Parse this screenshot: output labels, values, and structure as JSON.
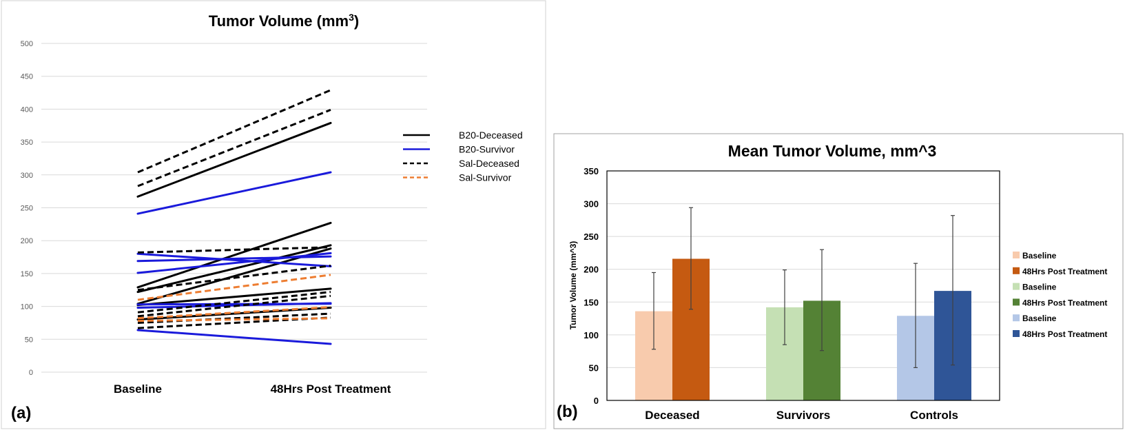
{
  "chart_data": [
    {
      "type": "line",
      "panel_label": "(a)",
      "title": "Tumor Volume (mm",
      "title_superscript": "3",
      "title_close": ")",
      "categories": [
        "Baseline",
        "48Hrs Post Treatment"
      ],
      "xlabel": "",
      "ylabel": "",
      "ylim": [
        0,
        500
      ],
      "yticks": [
        0,
        50,
        100,
        150,
        200,
        250,
        300,
        350,
        400,
        450,
        500
      ],
      "grid": true,
      "legend_position": "right",
      "legend": [
        {
          "name": "B20-Deceased",
          "color": "#000000",
          "dashed": false
        },
        {
          "name": "B20-Survivor",
          "color": "#1a1adb",
          "dashed": false
        },
        {
          "name": "Sal-Deceased",
          "color": "#000000",
          "dashed": true
        },
        {
          "name": "Sal-Survivor",
          "color": "#ed7d31",
          "dashed": true
        }
      ],
      "series": [
        {
          "group": "B20-Deceased",
          "values": [
            267,
            379
          ]
        },
        {
          "group": "B20-Deceased",
          "values": [
            129,
            227
          ]
        },
        {
          "group": "B20-Deceased",
          "values": [
            122,
            193
          ]
        },
        {
          "group": "B20-Deceased",
          "values": [
            104,
            188
          ]
        },
        {
          "group": "B20-Deceased",
          "values": [
            102,
            127
          ]
        },
        {
          "group": "B20-Deceased",
          "values": [
            80,
            98
          ]
        },
        {
          "group": "B20-Survivor",
          "values": [
            241,
            304
          ]
        },
        {
          "group": "B20-Survivor",
          "values": [
            180,
            161
          ]
        },
        {
          "group": "B20-Survivor",
          "values": [
            169,
            176
          ]
        },
        {
          "group": "B20-Survivor",
          "values": [
            151,
            181
          ]
        },
        {
          "group": "B20-Survivor",
          "values": [
            103,
            104
          ]
        },
        {
          "group": "B20-Survivor",
          "values": [
            98,
            105
          ]
        },
        {
          "group": "B20-Survivor",
          "values": [
            64,
            43
          ]
        },
        {
          "group": "Sal-Deceased",
          "values": [
            304,
            429
          ]
        },
        {
          "group": "Sal-Deceased",
          "values": [
            283,
            399
          ]
        },
        {
          "group": "Sal-Deceased",
          "values": [
            182,
            190
          ]
        },
        {
          "group": "Sal-Deceased",
          "values": [
            125,
            162
          ]
        },
        {
          "group": "Sal-Deceased",
          "values": [
            91,
            122
          ]
        },
        {
          "group": "Sal-Deceased",
          "values": [
            85,
            116
          ]
        },
        {
          "group": "Sal-Deceased",
          "values": [
            75,
            89
          ]
        },
        {
          "group": "Sal-Deceased",
          "values": [
            67,
            83
          ]
        },
        {
          "group": "Sal-Survivor",
          "values": [
            110,
            148
          ]
        },
        {
          "group": "Sal-Survivor",
          "values": [
            82,
            99
          ]
        },
        {
          "group": "Sal-Survivor",
          "values": [
            78,
            82
          ]
        }
      ]
    },
    {
      "type": "bar",
      "panel_label": "(b)",
      "title": "Mean Tumor Volume, mm^3",
      "categories": [
        "Deceased",
        "Survivors",
        "Controls"
      ],
      "xlabel": "",
      "ylabel": "Tumor Volume (mm^3)",
      "ylim": [
        0,
        350
      ],
      "yticks": [
        0,
        50,
        100,
        150,
        200,
        250,
        300,
        350
      ],
      "grid": true,
      "legend_position": "right",
      "series": [
        {
          "name": "Baseline",
          "category": "Deceased",
          "value": 136,
          "error": [
            78,
            195
          ],
          "color": "#f8cbad"
        },
        {
          "name": "48Hrs Post Treatment",
          "category": "Deceased",
          "value": 216,
          "error": [
            139,
            294
          ],
          "color": "#c55a11"
        },
        {
          "name": "Baseline",
          "category": "Survivors",
          "value": 142,
          "error": [
            85,
            199
          ],
          "color": "#c5e0b4"
        },
        {
          "name": "48Hrs Post Treatment",
          "category": "Survivors",
          "value": 152,
          "error": [
            76,
            230
          ],
          "color": "#548235"
        },
        {
          "name": "Baseline",
          "category": "Controls",
          "value": 129,
          "error": [
            50,
            209
          ],
          "color": "#b4c7e7"
        },
        {
          "name": "48Hrs Post Treatment",
          "category": "Controls",
          "value": 167,
          "error": [
            54,
            282
          ],
          "color": "#2f5597"
        }
      ]
    }
  ]
}
